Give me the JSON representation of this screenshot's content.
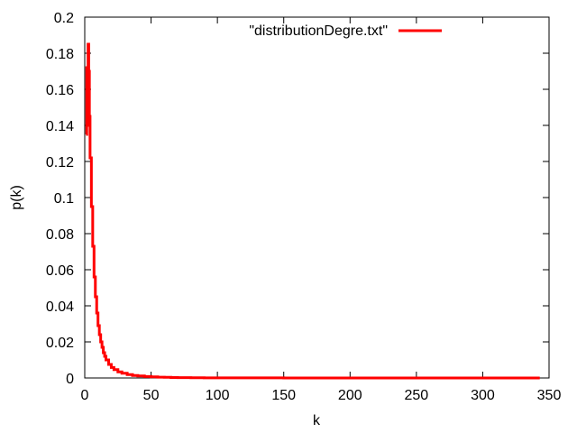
{
  "chart_data": {
    "type": "line",
    "title": "",
    "xlabel": "k",
    "ylabel": "p(k)",
    "xlim": [
      0,
      350
    ],
    "ylim": [
      0,
      0.2
    ],
    "xticks": [
      0,
      50,
      100,
      150,
      200,
      250,
      300,
      350
    ],
    "yticks": [
      0,
      0.02,
      0.04,
      0.06,
      0.08,
      0.1,
      0.12,
      0.14,
      0.16,
      0.18,
      0.2
    ],
    "xtick_labels": [
      "0",
      "50",
      "100",
      "150",
      "200",
      "250",
      "300",
      "350"
    ],
    "ytick_labels": [
      "0",
      "0.02",
      "0.04",
      "0.06",
      "0.08",
      "0.1",
      "0.12",
      "0.14",
      "0.16",
      "0.18",
      "0.2"
    ],
    "grid": false,
    "legend_position": "top-center",
    "series": [
      {
        "name": "\"distributionDegre.txt\"",
        "color": "#ff0000",
        "style": "steps",
        "x": [
          1,
          1.5,
          2,
          2.5,
          3,
          3.5,
          4,
          5,
          6,
          7,
          8,
          9,
          10,
          11,
          12,
          13,
          14,
          15,
          16,
          18,
          20,
          22,
          25,
          28,
          32,
          36,
          40,
          45,
          50,
          55,
          60,
          65,
          70,
          80,
          90,
          100,
          150,
          200,
          250,
          300,
          343
        ],
        "y": [
          0.135,
          0.172,
          0.14,
          0.185,
          0.17,
          0.145,
          0.122,
          0.095,
          0.073,
          0.056,
          0.045,
          0.036,
          0.029,
          0.024,
          0.02,
          0.017,
          0.014,
          0.012,
          0.01,
          0.0075,
          0.0058,
          0.0046,
          0.0034,
          0.0026,
          0.0019,
          0.0014,
          0.0011,
          0.0008,
          0.0006,
          0.00045,
          0.00035,
          0.00028,
          0.0002,
          0.00013,
          9e-05,
          6e-05,
          2e-05,
          1e-05,
          5e-06,
          2e-06,
          0
        ]
      }
    ]
  }
}
